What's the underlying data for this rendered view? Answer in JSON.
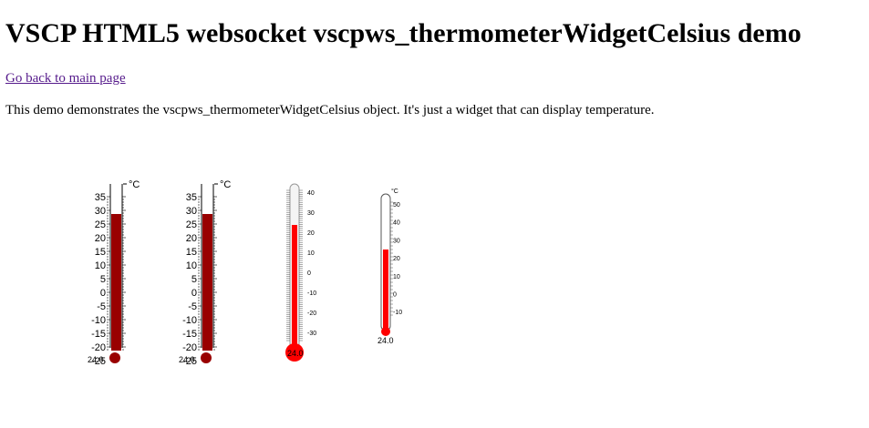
{
  "page": {
    "title": "VSCP HTML5 websocket vscpws_thermometerWidgetCelsius demo",
    "back_link": "Go back to main page",
    "description": "This demo demonstrates the vscpws_thermometerWidgetCelsius object. It's just a widget that can display temperature."
  },
  "widgets": [
    {
      "style": "dark-red",
      "unit": "°C",
      "value": 24.0,
      "value_text": "24.0",
      "scale_labels": [
        "35",
        "30",
        "25",
        "20",
        "15",
        "10",
        "5",
        "0",
        "-5",
        "-10",
        "-15",
        "-20",
        "-25"
      ],
      "colors": {
        "fill": "#990000",
        "bulb": "#990000"
      }
    },
    {
      "style": "dark-red",
      "unit": "°C",
      "value": 24.0,
      "value_text": "24.0",
      "scale_labels": [
        "35",
        "30",
        "25",
        "20",
        "15",
        "10",
        "5",
        "0",
        "-5",
        "-10",
        "-15",
        "-20",
        "-25"
      ],
      "colors": {
        "fill": "#990000",
        "bulb": "#990000"
      }
    },
    {
      "style": "glass-bulb",
      "unit": "",
      "value": 24.0,
      "value_text": "24.0",
      "scale_labels": [
        "40",
        "30",
        "20",
        "10",
        "0",
        "-10",
        "-20",
        "-30"
      ],
      "colors": {
        "fill": "#ff0000",
        "bulb": "#ff0000"
      }
    },
    {
      "style": "slim",
      "unit": "°C",
      "value": 24.0,
      "value_text": "24.0",
      "scale_labels": [
        "50",
        "40",
        "30",
        "20",
        "10",
        "0",
        "-10"
      ],
      "colors": {
        "fill": "#ff0000",
        "bulb": "#ff0000"
      }
    }
  ]
}
